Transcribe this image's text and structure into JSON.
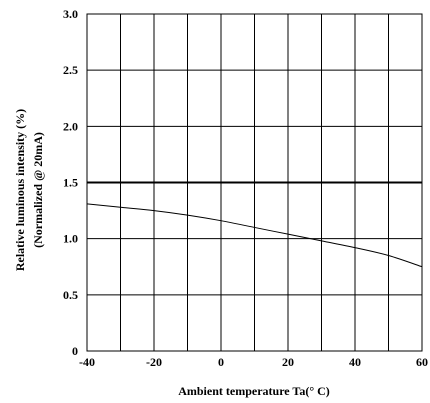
{
  "chart_data": {
    "type": "line",
    "title": "",
    "xlabel": "Ambient temperature Ta(° C)",
    "ylabel_lines": [
      "Relative luminous intensity (%)",
      "(Normalized @ 20mA)"
    ],
    "xlim": [
      -40,
      60
    ],
    "ylim": [
      0,
      3.0
    ],
    "x_ticks": [
      -40,
      -20,
      0,
      20,
      40,
      60
    ],
    "x_tick_labels": [
      "-40",
      "-20",
      "0",
      "20",
      "40",
      "60"
    ],
    "y_ticks": [
      0,
      0.5,
      1.0,
      1.5,
      2.0,
      2.5,
      3.0
    ],
    "y_tick_labels": [
      "0",
      "0.5",
      "1.0",
      "1.5",
      "2.0",
      "2.5",
      "3.0"
    ],
    "x_grid": [
      -40,
      -30,
      -20,
      -10,
      0,
      10,
      20,
      30,
      40,
      50,
      60
    ],
    "y_grid": [
      0,
      0.5,
      1.0,
      1.5,
      2.0,
      2.5,
      3.0
    ],
    "grid": true,
    "reference_line": {
      "y": 1.5
    },
    "series": [
      {
        "x": [
          -40,
          -30,
          -20,
          -10,
          0,
          10,
          20,
          30,
          40,
          50,
          60
        ],
        "values": [
          1.31,
          1.28,
          1.25,
          1.21,
          1.16,
          1.1,
          1.04,
          0.98,
          0.92,
          0.85,
          0.75
        ]
      }
    ],
    "colors": {
      "line": "#000000",
      "grid": "#000000",
      "background": "#ffffff"
    }
  }
}
